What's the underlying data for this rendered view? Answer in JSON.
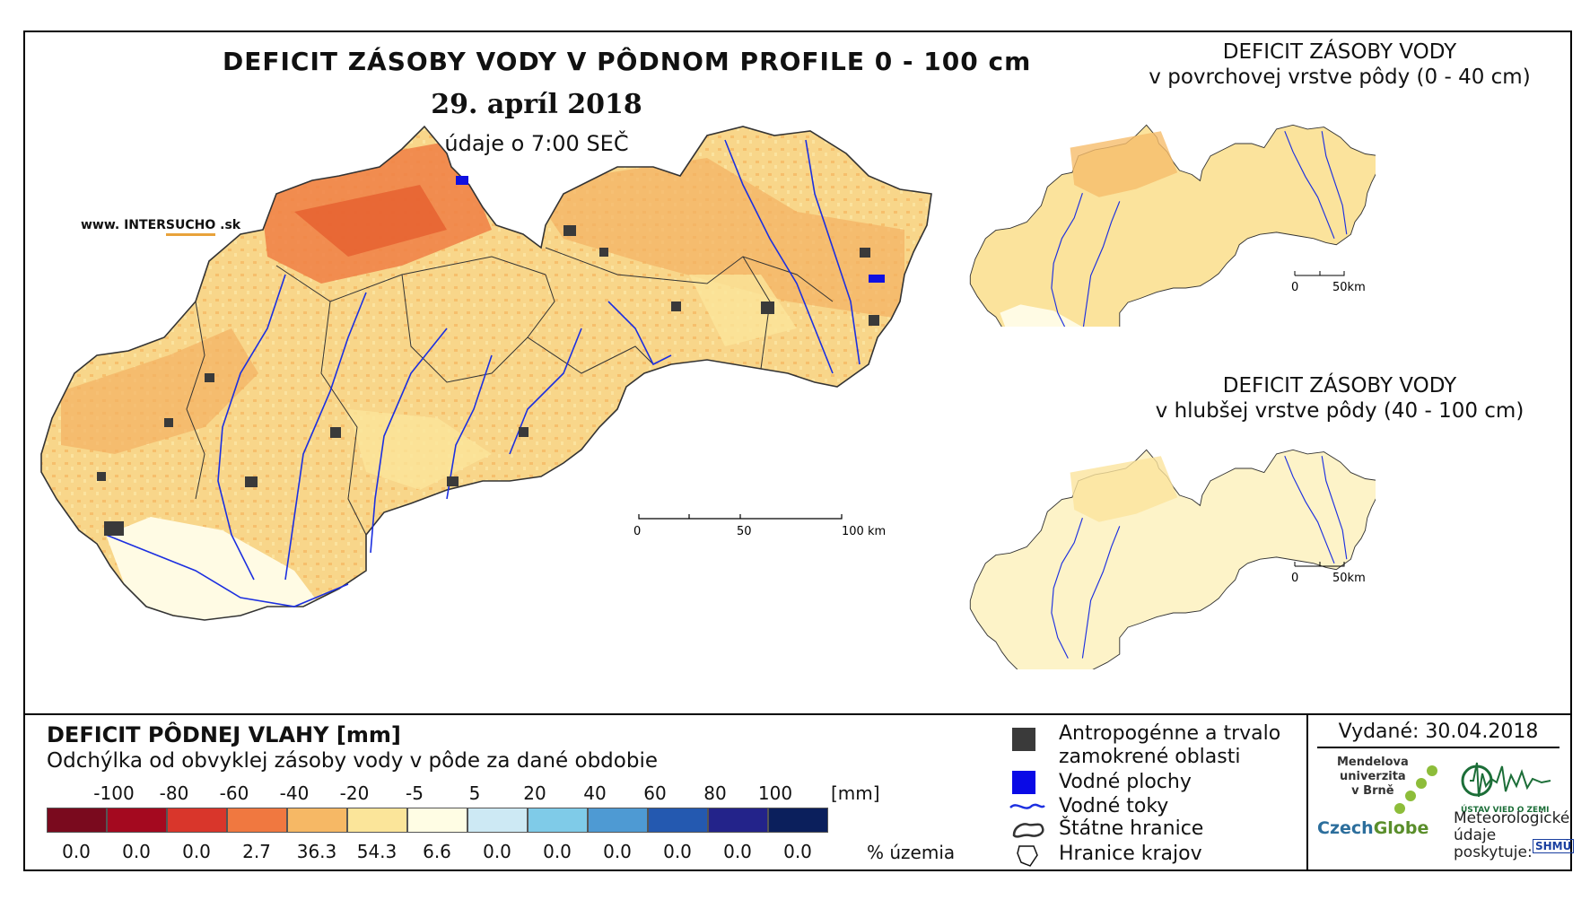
{
  "main_map": {
    "title": "DEFICIT ZÁSOBY VODY V PÔDNOM PROFILE 0 - 100 cm",
    "date": "29. apríl 2018",
    "time": "údaje o 7:00 SEČ",
    "website_prefix": "www. INTER",
    "website_accent": "SUCHO",
    "website_suffix": " .sk",
    "scale": {
      "ticks": [
        "0",
        "50",
        "100 km"
      ]
    }
  },
  "inset_top": {
    "title_line1": "DEFICIT ZÁSOBY VODY",
    "title_line2": "v povrchovej vrstve pôdy (0 - 40 cm)",
    "scale": {
      "ticks": [
        "0",
        "50km"
      ]
    }
  },
  "inset_bottom": {
    "title_line1": "DEFICIT ZÁSOBY VODY",
    "title_line2": "v hlubšej vrstve pôdy (40 - 100 cm)",
    "scale": {
      "ticks": [
        "0",
        "50km"
      ]
    }
  },
  "legend": {
    "title": "DEFICIT PÔDNEJ VLAHY [mm]",
    "subtitle": "Odchýlka od obvyklej zásoby vody v pôde za dané obdobie",
    "class_labels": [
      "-100",
      "-80",
      "-60",
      "-40",
      "-20",
      "-5",
      "5",
      "20",
      "40",
      "60",
      "80",
      "100"
    ],
    "unit": "[mm]",
    "colors": [
      "#7a0a1e",
      "#a4091f",
      "#d9362b",
      "#f07840",
      "#f6b865",
      "#fbe59a",
      "#fffde4",
      "#cde9f4",
      "#7fcbe8",
      "#4e9ad3",
      "#2459b0",
      "#23238a",
      "#0b1f5c"
    ],
    "percentages": [
      "0.0",
      "0.0",
      "0.0",
      "2.7",
      "36.3",
      "54.3",
      "6.6",
      "0.0",
      "0.0",
      "0.0",
      "0.0",
      "0.0",
      "0.0"
    ],
    "percent_unit": "% územia"
  },
  "symbols": {
    "urban_line1": "Antropogénne a trvalo",
    "urban_line2": "zamokrené oblasti",
    "water_bodies": "Vodné plochy",
    "rivers": "Vodné toky",
    "state_border": "Štátne hranice",
    "regions": "Hranice krajov"
  },
  "footer": {
    "issued": "Vydané: 30.04.2018",
    "mendel_line1": "Mendelova",
    "mendel_line2": "univerzita",
    "mendel_line3": "v Brně",
    "czech": "Czech",
    "globe": "Globe",
    "ustav": "ÚSTAV VIED O ZEMI",
    "meteo_line1": "Meteorologické",
    "meteo_line2": "údaje",
    "meteo_line3": "poskytuje:",
    "shmu": "SHMÚ"
  }
}
